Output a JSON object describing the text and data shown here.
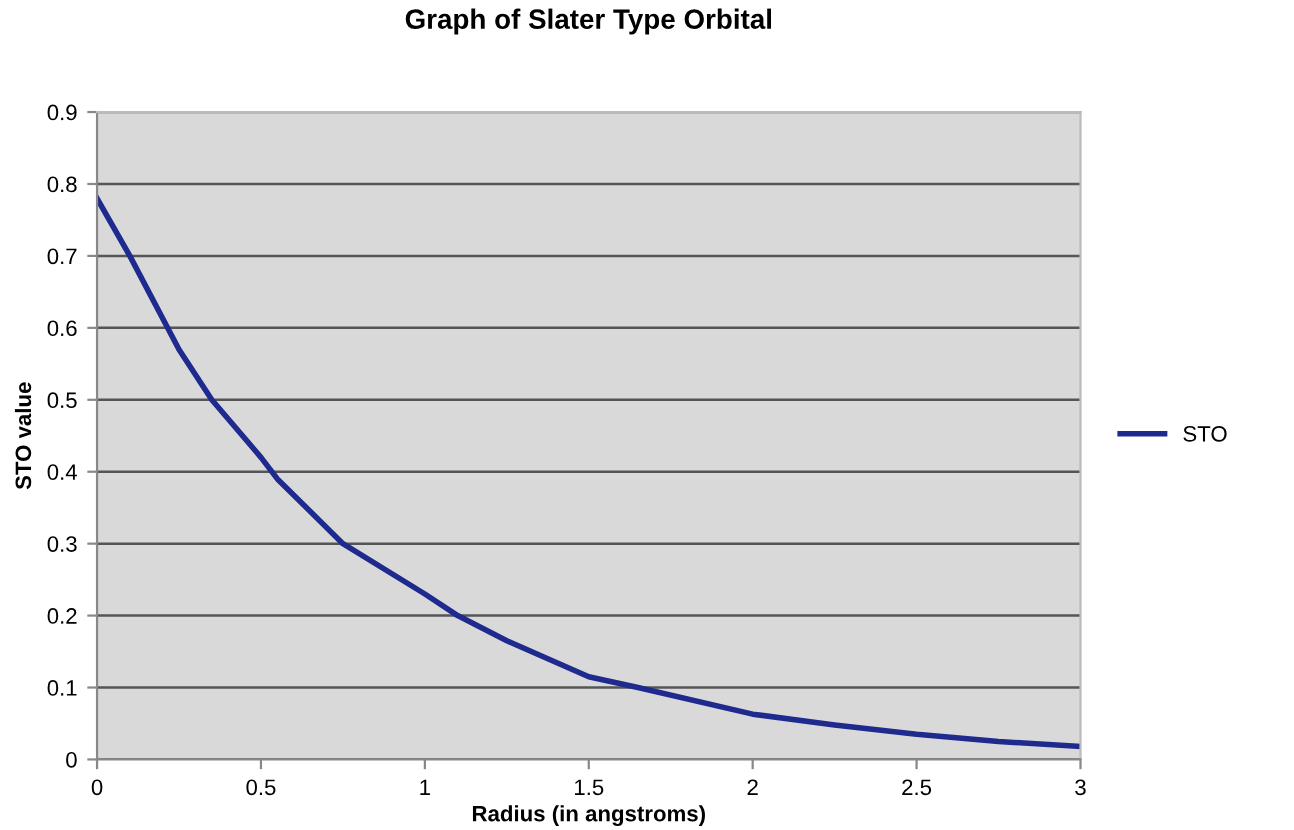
{
  "chart_data": {
    "type": "line",
    "title": "Graph of Slater Type Orbital",
    "xlabel": "Radius (in angstroms)",
    "ylabel": "STO value",
    "xlim": [
      0,
      3
    ],
    "xticks": [
      0,
      0.5,
      1,
      1.5,
      2,
      2.5,
      3
    ],
    "ylim": [
      0,
      0.9
    ],
    "yticks": [
      0,
      0.1,
      0.2,
      0.3,
      0.4,
      0.5,
      0.6,
      0.7,
      0.8,
      0.9
    ],
    "grid": "y",
    "legend": "right",
    "marker": "none",
    "line_style": "solid",
    "series": [
      {
        "name": "STO",
        "color": "#1f2a8f",
        "x": [
          0,
          0.1,
          0.25,
          0.35,
          0.5,
          0.55,
          0.75,
          1.0,
          1.1,
          1.25,
          1.5,
          1.65,
          2.0,
          2.25,
          2.5,
          2.75,
          3.0
        ],
        "values": [
          0.78,
          0.7,
          0.57,
          0.5,
          0.42,
          0.39,
          0.3,
          0.23,
          0.2,
          0.165,
          0.115,
          0.1,
          0.063,
          0.048,
          0.035,
          0.025,
          0.018
        ]
      }
    ]
  }
}
